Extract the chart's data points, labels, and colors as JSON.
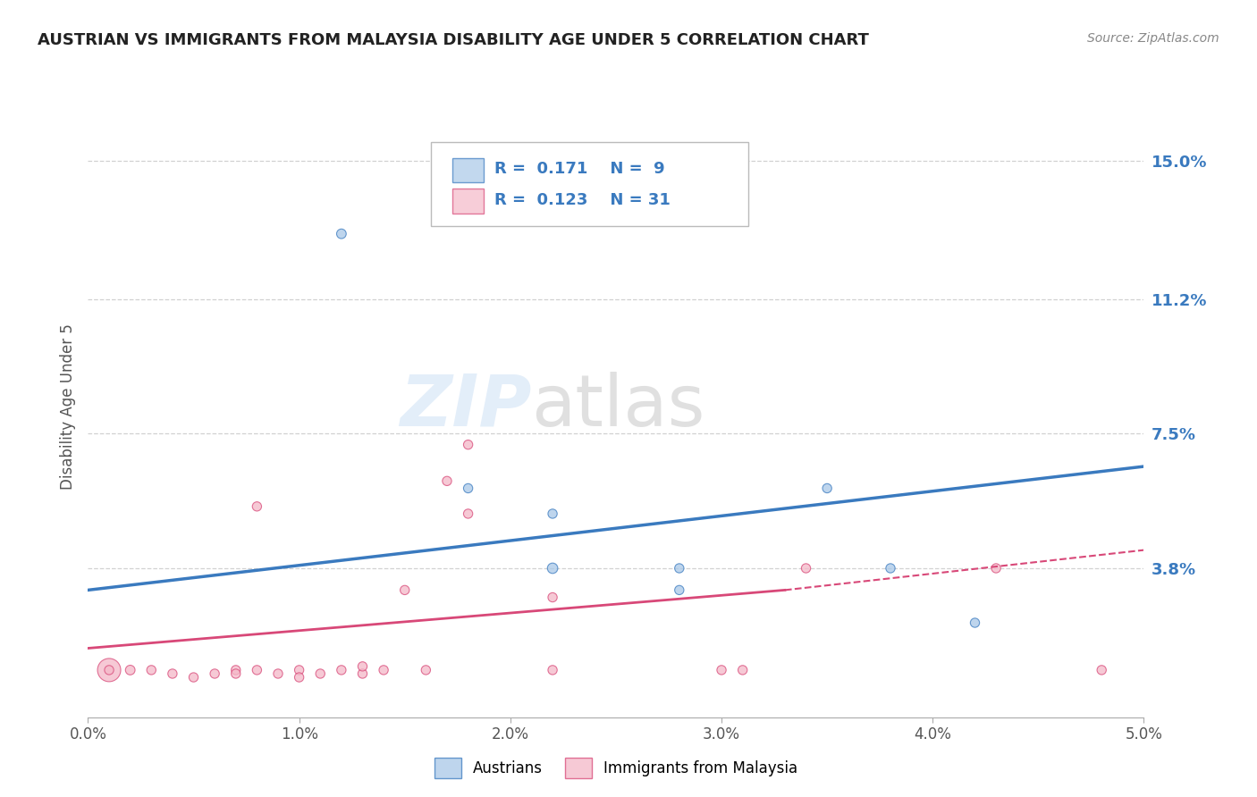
{
  "title": "AUSTRIAN VS IMMIGRANTS FROM MALAYSIA DISABILITY AGE UNDER 5 CORRELATION CHART",
  "source": "Source: ZipAtlas.com",
  "ylabel": "Disability Age Under 5",
  "xlabel_ticks": [
    "0.0%",
    "1.0%",
    "2.0%",
    "3.0%",
    "4.0%",
    "5.0%"
  ],
  "ytick_labels": [
    "15.0%",
    "11.2%",
    "7.5%",
    "3.8%"
  ],
  "ytick_values": [
    0.15,
    0.112,
    0.075,
    0.038
  ],
  "xlim": [
    0.0,
    0.05
  ],
  "ylim": [
    -0.003,
    0.168
  ],
  "background_color": "#ffffff",
  "grid_color": "#cccccc",
  "blue_color": "#a8c8e8",
  "blue_fill": "#a8c8e8",
  "pink_color": "#f4b8c8",
  "pink_fill": "#f4b8c8",
  "blue_line_color": "#3a7abf",
  "pink_line_color": "#d84878",
  "austrians_label": "Austrians",
  "immigrants_label": "Immigrants from Malaysia",
  "austrians_scatter": [
    [
      0.012,
      0.13
    ],
    [
      0.018,
      0.06
    ],
    [
      0.022,
      0.053
    ],
    [
      0.028,
      0.038
    ],
    [
      0.028,
      0.032
    ],
    [
      0.035,
      0.06
    ],
    [
      0.038,
      0.038
    ],
    [
      0.042,
      0.023
    ],
    [
      0.022,
      0.038
    ]
  ],
  "austrians_sizes": [
    60,
    55,
    55,
    55,
    55,
    55,
    55,
    55,
    70
  ],
  "immigrants_scatter": [
    [
      0.001,
      0.01
    ],
    [
      0.002,
      0.01
    ],
    [
      0.003,
      0.01
    ],
    [
      0.004,
      0.009
    ],
    [
      0.005,
      0.008
    ],
    [
      0.006,
      0.009
    ],
    [
      0.007,
      0.01
    ],
    [
      0.007,
      0.009
    ],
    [
      0.008,
      0.01
    ],
    [
      0.009,
      0.009
    ],
    [
      0.01,
      0.01
    ],
    [
      0.01,
      0.008
    ],
    [
      0.011,
      0.009
    ],
    [
      0.012,
      0.01
    ],
    [
      0.013,
      0.009
    ],
    [
      0.013,
      0.011
    ],
    [
      0.014,
      0.01
    ],
    [
      0.015,
      0.032
    ],
    [
      0.016,
      0.01
    ],
    [
      0.017,
      0.062
    ],
    [
      0.018,
      0.072
    ],
    [
      0.008,
      0.055
    ],
    [
      0.018,
      0.053
    ],
    [
      0.022,
      0.01
    ],
    [
      0.022,
      0.03
    ],
    [
      0.03,
      0.01
    ],
    [
      0.031,
      0.01
    ],
    [
      0.034,
      0.038
    ],
    [
      0.043,
      0.038
    ],
    [
      0.048,
      0.01
    ],
    [
      0.001,
      0.01
    ]
  ],
  "immigrants_sizes": [
    350,
    60,
    55,
    55,
    55,
    55,
    55,
    55,
    55,
    55,
    55,
    55,
    55,
    55,
    55,
    55,
    55,
    55,
    55,
    55,
    55,
    55,
    55,
    55,
    55,
    55,
    55,
    55,
    55,
    55,
    55
  ],
  "blue_trendline": [
    [
      0.0,
      0.032
    ],
    [
      0.05,
      0.066
    ]
  ],
  "pink_solid_trendline": [
    [
      0.0,
      0.016
    ],
    [
      0.033,
      0.032
    ]
  ],
  "pink_dash_trendline": [
    [
      0.033,
      0.032
    ],
    [
      0.05,
      0.043
    ]
  ]
}
